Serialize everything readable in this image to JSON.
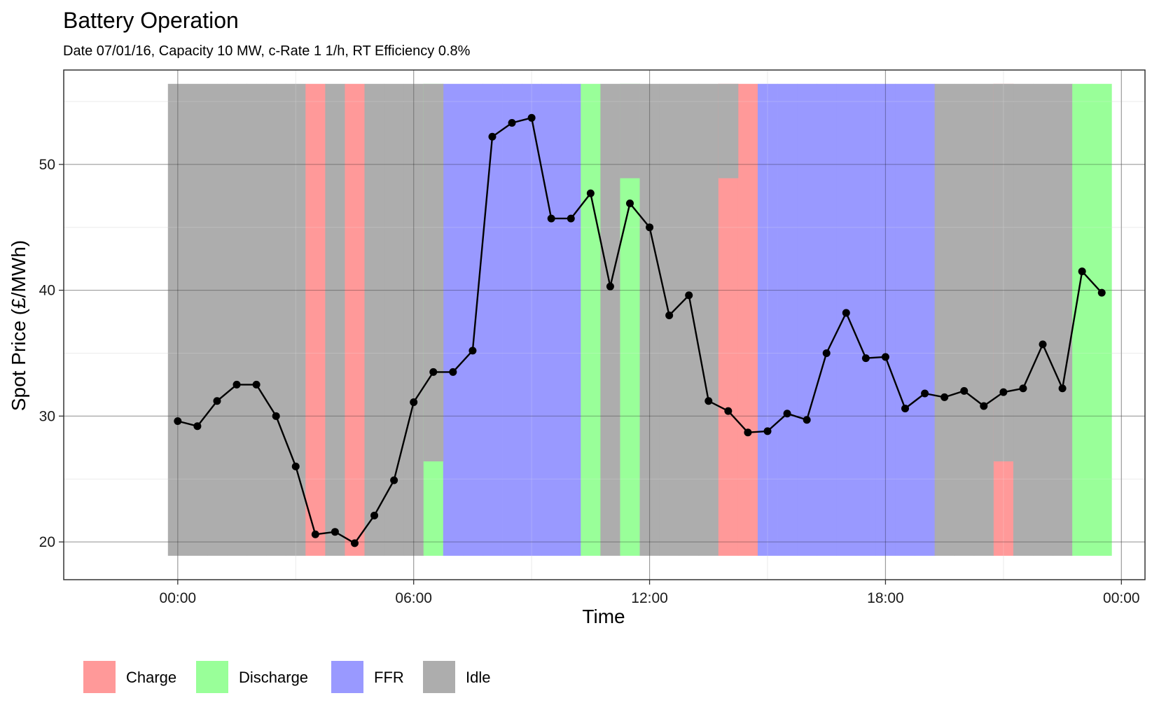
{
  "chart_data": {
    "type": "line",
    "title": "Battery Operation",
    "subtitle": "Date 07/01/16, Capacity 10 MW, c-Rate 1 1/h, RT Efficiency 0.8%",
    "xlabel": "Time",
    "ylabel": "Spot Price (£/MWh)",
    "xlim_hours": [
      -2.9,
      24.6
    ],
    "ylim": [
      17,
      57.5
    ],
    "x_ticks": [
      {
        "hour": 0,
        "label": "00:00"
      },
      {
        "hour": 6,
        "label": "06:00"
      },
      {
        "hour": 12,
        "label": "12:00"
      },
      {
        "hour": 18,
        "label": "18:00"
      },
      {
        "hour": 24,
        "label": "00:00"
      }
    ],
    "y_ticks": [
      20,
      30,
      40,
      50
    ],
    "grid": true,
    "legend_position": "bottom",
    "legend": [
      {
        "key": "charge",
        "label": "Charge",
        "color": "#ff9999"
      },
      {
        "key": "discharge",
        "label": "Discharge",
        "color": "#99ff99"
      },
      {
        "key": "ffr",
        "label": "FFR",
        "color": "#9999ff"
      },
      {
        "key": "idle",
        "label": "Idle",
        "color": "#adadad"
      }
    ],
    "line_color": "#000000",
    "spot_price": {
      "x_hours": [
        0,
        0.5,
        1,
        1.5,
        2,
        2.5,
        3,
        3.5,
        4,
        4.5,
        5,
        5.5,
        6,
        6.5,
        7,
        7.5,
        8,
        8.5,
        9,
        9.5,
        10,
        10.5,
        11,
        11.5,
        12,
        12.5,
        13,
        13.5,
        14,
        14.5,
        15,
        15.5,
        16,
        16.5,
        17,
        17.5,
        18,
        18.5,
        19,
        19.5,
        20,
        20.5,
        21,
        21.5,
        22,
        22.5,
        23,
        23.5
      ],
      "y": [
        29.6,
        29.2,
        31.2,
        32.5,
        32.5,
        30.0,
        26.0,
        20.6,
        20.8,
        19.9,
        22.1,
        24.9,
        31.1,
        33.5,
        33.5,
        35.2,
        52.2,
        53.3,
        53.7,
        45.7,
        45.7,
        47.7,
        40.3,
        46.9,
        45.0,
        38.0,
        39.6,
        31.2,
        30.4,
        28.7,
        28.8,
        30.2,
        29.7,
        35.0,
        38.2,
        34.6,
        34.7,
        30.6,
        31.8,
        31.5,
        32.0,
        30.8,
        31.9,
        32.2,
        35.7,
        32.2,
        41.5,
        39.8
      ]
    },
    "operation_bars": {
      "x_hours": [
        0,
        0.5,
        1,
        1.5,
        2,
        2.5,
        3,
        3.5,
        4,
        4.5,
        5,
        5.5,
        6,
        6.5,
        7,
        7.5,
        8,
        8.5,
        9,
        9.5,
        10,
        10.5,
        11,
        11.5,
        12,
        12.5,
        13,
        13.5,
        14,
        14.5,
        15,
        15.5,
        16,
        16.5,
        17,
        17.5,
        18,
        18.5,
        19,
        19.5,
        20,
        20.5,
        21,
        21.5,
        22,
        22.5,
        23,
        23.5
      ],
      "state": [
        "idle",
        "idle",
        "idle",
        "idle",
        "idle",
        "idle",
        "idle",
        "charge",
        "idle",
        "charge",
        "idle",
        "idle",
        "idle",
        "discharge",
        "ffr",
        "ffr",
        "ffr",
        "ffr",
        "ffr",
        "ffr",
        "ffr",
        "discharge",
        "idle",
        "discharge",
        "idle",
        "idle",
        "idle",
        "idle",
        "charge",
        "charge",
        "ffr",
        "ffr",
        "ffr",
        "ffr",
        "ffr",
        "ffr",
        "ffr",
        "ffr",
        "ffr",
        "idle",
        "idle",
        "idle",
        "charge",
        "idle",
        "idle",
        "idle",
        "discharge",
        "discharge"
      ],
      "level_top": [
        56.4,
        56.4,
        56.4,
        56.4,
        56.4,
        56.4,
        56.4,
        56.4,
        56.4,
        56.4,
        56.4,
        56.4,
        56.4,
        56.4,
        56.4,
        56.4,
        56.4,
        56.4,
        56.4,
        56.4,
        56.4,
        56.4,
        56.4,
        56.4,
        56.4,
        56.4,
        56.4,
        56.4,
        56.4,
        56.4,
        56.4,
        56.4,
        56.4,
        56.4,
        56.4,
        56.4,
        56.4,
        56.4,
        56.4,
        56.4,
        56.4,
        56.4,
        56.4,
        56.4,
        56.4,
        56.4,
        56.4,
        56.4
      ],
      "level_bottom": 18.9,
      "band_overlays": [
        {
          "state": "discharge",
          "start_hour": 6.25,
          "top": 26.4
        },
        {
          "state": "charge",
          "start_hour": 13.75,
          "top": 48.9
        },
        {
          "state": "charge",
          "start_hour": 20.75,
          "top": 26.4
        },
        {
          "state": "discharge",
          "start_hour": 11.25,
          "top": 48.9
        },
        {
          "state": "discharge",
          "start_hour": 10.25,
          "top": 56.4
        }
      ]
    }
  }
}
